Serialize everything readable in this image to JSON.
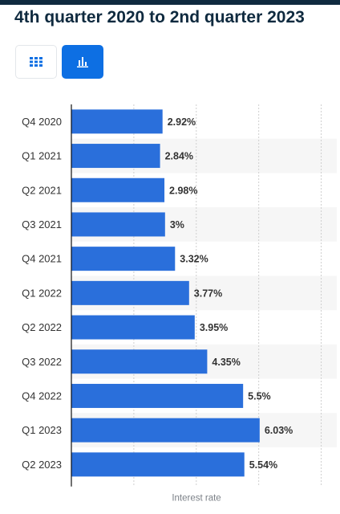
{
  "header": {
    "title": "4th quarter 2020 to 2nd quarter 2023"
  },
  "view_toggle": {
    "table_icon": "grid-icon",
    "chart_icon": "bar-chart-icon",
    "active": "chart"
  },
  "colors": {
    "bar": "#2a6fdb",
    "accent": "#0d6fe3",
    "title": "#0f2a3f"
  },
  "chart_data": {
    "type": "bar",
    "orientation": "horizontal",
    "categories": [
      "Q4 2020",
      "Q1 2021",
      "Q2 2021",
      "Q3 2021",
      "Q4 2021",
      "Q1 2022",
      "Q2 2022",
      "Q3 2022",
      "Q4 2022",
      "Q1 2023",
      "Q2 2023"
    ],
    "values": [
      2.92,
      2.84,
      2.98,
      3,
      3.32,
      3.77,
      3.95,
      4.35,
      5.5,
      6.03,
      5.54
    ],
    "value_labels": [
      "2.92%",
      "2.84%",
      "2.98%",
      "3%",
      "3.32%",
      "3.77%",
      "3.95%",
      "4.35%",
      "5.5%",
      "6.03%",
      "5.54%"
    ],
    "title": "",
    "xlabel": "Interest rate",
    "ylabel": "",
    "xlim": [
      0,
      8.5
    ],
    "grid": true,
    "alternating_row_shading": true
  }
}
